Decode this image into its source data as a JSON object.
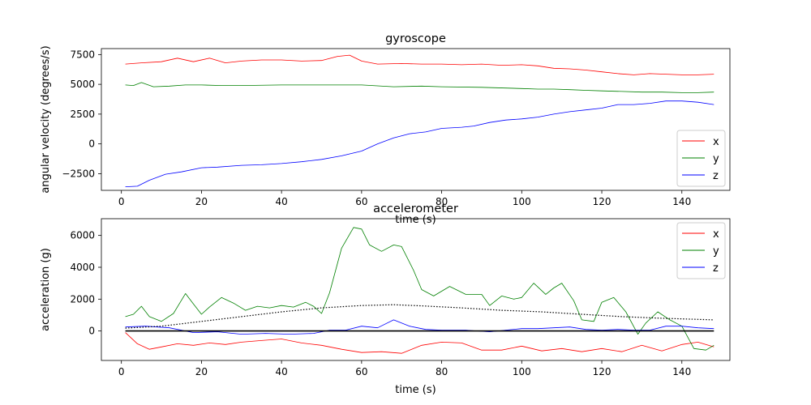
{
  "chart_data": [
    {
      "type": "line",
      "title": "gyroscope",
      "xlabel": "time (s)",
      "ylabel": "angular velocity (degrees/s)",
      "xlim": [
        -5,
        152
      ],
      "ylim": [
        -3900,
        8000
      ],
      "xticks": [
        0,
        20,
        40,
        60,
        80,
        100,
        120,
        140
      ],
      "yticks": [
        -2500,
        0,
        2500,
        5000,
        7500
      ],
      "xtick_labels": [
        "0",
        "20",
        "40",
        "60",
        "80",
        "100",
        "120",
        "140"
      ],
      "ytick_labels": [
        "−2500",
        "0",
        "2500",
        "5000",
        "7500"
      ],
      "legend_position": "lower right",
      "grid": false,
      "series": [
        {
          "name": "x",
          "color": "#ff0000",
          "x": [
            1,
            5,
            10,
            14,
            18,
            22,
            26,
            30,
            35,
            40,
            45,
            50,
            54,
            57,
            60,
            64,
            70,
            75,
            80,
            85,
            90,
            95,
            100,
            104,
            108,
            112,
            116,
            120,
            124,
            128,
            132,
            136,
            140,
            144,
            148
          ],
          "y": [
            6700,
            6800,
            6900,
            7200,
            6900,
            7200,
            6800,
            6950,
            7050,
            7050,
            6950,
            7000,
            7350,
            7450,
            6950,
            6700,
            6750,
            6700,
            6700,
            6650,
            6700,
            6600,
            6650,
            6550,
            6350,
            6300,
            6200,
            6050,
            5900,
            5800,
            5900,
            5850,
            5800,
            5800,
            5850
          ]
        },
        {
          "name": "y",
          "color": "#008000",
          "x": [
            1,
            3,
            5,
            8,
            12,
            16,
            20,
            25,
            30,
            40,
            50,
            60,
            68,
            75,
            80,
            90,
            100,
            104,
            108,
            112,
            116,
            120,
            125,
            130,
            135,
            140,
            144,
            148
          ],
          "y": [
            4950,
            4900,
            5150,
            4800,
            4850,
            4950,
            4950,
            4900,
            4900,
            4950,
            4950,
            4950,
            4800,
            4850,
            4800,
            4750,
            4650,
            4600,
            4600,
            4550,
            4500,
            4450,
            4400,
            4350,
            4350,
            4300,
            4300,
            4350
          ]
        },
        {
          "name": "z",
          "color": "#0000ff",
          "x": [
            1,
            4,
            7,
            11,
            15,
            20,
            24,
            30,
            35,
            40,
            45,
            50,
            55,
            60,
            64,
            68,
            72,
            76,
            80,
            85,
            88,
            92,
            96,
            100,
            104,
            108,
            112,
            116,
            120,
            124,
            128,
            132,
            136,
            140,
            144,
            148
          ],
          "y": [
            -3600,
            -3550,
            -3050,
            -2550,
            -2350,
            -2000,
            -1950,
            -1800,
            -1750,
            -1650,
            -1500,
            -1300,
            -1000,
            -600,
            0,
            500,
            850,
            1000,
            1300,
            1400,
            1500,
            1800,
            2000,
            2100,
            2250,
            2500,
            2700,
            2850,
            3000,
            3300,
            3300,
            3400,
            3600,
            3600,
            3500,
            3300
          ]
        }
      ]
    },
    {
      "type": "line",
      "title": "accelerometer",
      "xlabel": "time (s)",
      "ylabel": "acceleration (g)",
      "xlim": [
        -5,
        152
      ],
      "ylim": [
        -1850,
        7050
      ],
      "xticks": [
        0,
        20,
        40,
        60,
        80,
        100,
        120,
        140
      ],
      "yticks": [
        0,
        2000,
        4000,
        6000
      ],
      "xtick_labels": [
        "0",
        "20",
        "40",
        "60",
        "80",
        "100",
        "120",
        "140"
      ],
      "ytick_labels": [
        "0",
        "2000",
        "4000",
        "6000"
      ],
      "legend_position": "upper right",
      "grid": false,
      "series": [
        {
          "name": "x",
          "color": "#ff0000",
          "x": [
            1,
            4,
            7,
            10,
            14,
            18,
            22,
            26,
            30,
            35,
            40,
            45,
            50,
            55,
            60,
            65,
            70,
            75,
            80,
            85,
            90,
            95,
            100,
            105,
            110,
            115,
            120,
            125,
            130,
            135,
            140,
            144,
            148
          ],
          "y": [
            -100,
            -800,
            -1150,
            -1000,
            -800,
            -900,
            -750,
            -850,
            -700,
            -600,
            -500,
            -750,
            -900,
            -1150,
            -1350,
            -1300,
            -1400,
            -900,
            -700,
            -750,
            -1200,
            -1200,
            -950,
            -1250,
            -1100,
            -1300,
            -1100,
            -1300,
            -900,
            -1250,
            -850,
            -700,
            -1000
          ]
        },
        {
          "name": "y",
          "color": "#008000",
          "x": [
            1,
            3,
            5,
            7,
            10,
            13,
            16,
            18,
            20,
            22,
            25,
            28,
            31,
            34,
            37,
            40,
            43,
            46,
            48,
            50,
            52,
            55,
            58,
            60,
            62,
            65,
            68,
            70,
            73,
            75,
            78,
            82,
            86,
            90,
            92,
            95,
            98,
            100,
            103,
            106,
            108,
            110,
            113,
            115,
            118,
            120,
            123,
            126,
            129,
            131,
            134,
            137,
            140,
            143,
            146,
            148
          ],
          "y": [
            900,
            1050,
            1550,
            900,
            600,
            1100,
            2350,
            1700,
            1050,
            1500,
            2100,
            1750,
            1300,
            1550,
            1450,
            1600,
            1500,
            1800,
            1550,
            1100,
            2400,
            5200,
            6500,
            6400,
            5400,
            5000,
            5400,
            5300,
            3800,
            2600,
            2200,
            2800,
            2300,
            2300,
            1600,
            2200,
            2000,
            2100,
            3000,
            2300,
            2700,
            3000,
            1900,
            700,
            600,
            1800,
            2100,
            1200,
            -200,
            500,
            1200,
            700,
            300,
            -1100,
            -1200,
            -900
          ]
        },
        {
          "name": "z",
          "color": "#0000ff",
          "x": [
            1,
            6,
            12,
            18,
            24,
            30,
            36,
            42,
            48,
            52,
            56,
            60,
            64,
            68,
            72,
            76,
            80,
            86,
            92,
            96,
            100,
            104,
            108,
            112,
            116,
            120,
            124,
            128,
            132,
            136,
            140,
            144,
            148
          ],
          "y": [
            250,
            300,
            200,
            -100,
            -50,
            -200,
            -150,
            -200,
            -150,
            50,
            50,
            300,
            200,
            700,
            300,
            100,
            50,
            50,
            -50,
            50,
            150,
            150,
            200,
            250,
            100,
            50,
            100,
            50,
            50,
            300,
            300,
            200,
            150
          ]
        },
        {
          "color": "#000000",
          "style": "dotted",
          "x": [
            1,
            10,
            20,
            30,
            40,
            50,
            60,
            68,
            75,
            85,
            95,
            105,
            115,
            125,
            135,
            148
          ],
          "y": [
            180,
            300,
            600,
            900,
            1200,
            1450,
            1600,
            1650,
            1580,
            1450,
            1300,
            1200,
            1050,
            900,
            800,
            700
          ]
        },
        {
          "color": "#000000",
          "style": "solid",
          "x": [
            1,
            148
          ],
          "y": [
            0,
            0
          ]
        }
      ]
    }
  ]
}
